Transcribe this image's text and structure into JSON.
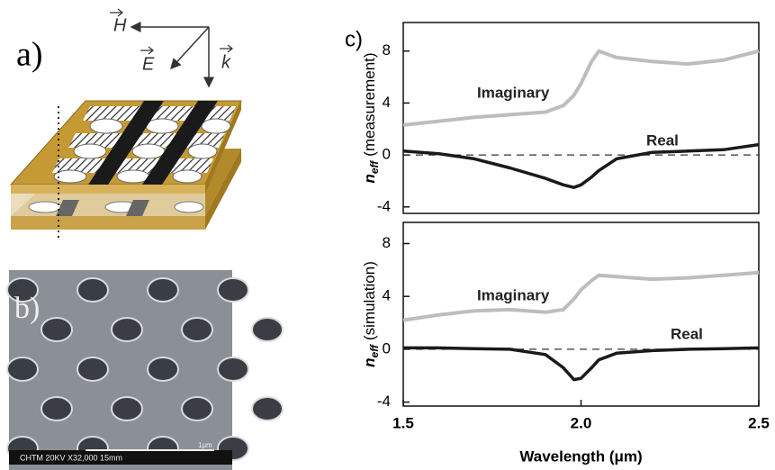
{
  "figure": {
    "panel_a": {
      "label": "a)",
      "field_h": "H",
      "field_e": "E",
      "wave_k": "k"
    },
    "panel_b": {
      "label": "b)",
      "scale_caption": "CHTM 20KV X32,000 15mm",
      "scale_length": "1μm"
    },
    "panel_c": {
      "label": "c)"
    }
  },
  "chart_data": [
    {
      "type": "line",
      "ylabel_symbol": "n",
      "ylabel_subscript": "eff",
      "ylabel": "(measurement)",
      "x": [
        1.5,
        1.6,
        1.7,
        1.8,
        1.9,
        1.95,
        1.98,
        2.0,
        2.03,
        2.05,
        2.1,
        2.2,
        2.3,
        2.4,
        2.5
      ],
      "xlim": [
        1.5,
        2.5
      ],
      "ylim": [
        -4.5,
        10.2
      ],
      "yticks": [
        -4,
        0,
        4,
        8
      ],
      "zero_line": true,
      "annotations": [
        "Imaginary",
        "Real"
      ],
      "series": [
        {
          "name": "Imaginary",
          "color": "#bdbdbd",
          "values": [
            2.3,
            2.6,
            2.9,
            3.1,
            3.3,
            3.8,
            4.6,
            5.5,
            7.2,
            8.0,
            7.5,
            7.2,
            7.0,
            7.3,
            8.0
          ]
        },
        {
          "name": "Real",
          "color": "#1a1a1a",
          "values": [
            0.3,
            0.1,
            -0.3,
            -1.0,
            -1.8,
            -2.3,
            -2.5,
            -2.3,
            -1.7,
            -1.2,
            -0.3,
            0.2,
            0.3,
            0.4,
            0.8
          ]
        }
      ]
    },
    {
      "type": "line",
      "ylabel_symbol": "n",
      "ylabel_subscript": "eff",
      "ylabel": "(simulation)",
      "xlabel": "Wavelength (μm)",
      "x": [
        1.5,
        1.6,
        1.7,
        1.8,
        1.9,
        1.95,
        1.98,
        2.0,
        2.03,
        2.05,
        2.1,
        2.2,
        2.3,
        2.4,
        2.5
      ],
      "xlim": [
        1.5,
        2.5
      ],
      "xticks": [
        1.5,
        {
          "value": 2,
          "label": "2.0"
        },
        2.5
      ],
      "ylim": [
        -4.3,
        9.6
      ],
      "yticks": [
        -4,
        0,
        4,
        8
      ],
      "zero_line": true,
      "annotations": [
        "Imaginary",
        "Real"
      ],
      "series": [
        {
          "name": "Imaginary",
          "color": "#bdbdbd",
          "values": [
            2.2,
            2.6,
            2.9,
            3.0,
            2.8,
            3.0,
            3.8,
            4.5,
            5.2,
            5.6,
            5.5,
            5.3,
            5.4,
            5.6,
            5.8
          ]
        },
        {
          "name": "Real",
          "color": "#1a1a1a",
          "values": [
            0.1,
            0.1,
            0.05,
            0,
            -0.4,
            -1.4,
            -2.3,
            -2.2,
            -1.4,
            -0.8,
            -0.3,
            -0.1,
            0,
            0.05,
            0.1
          ]
        }
      ]
    }
  ]
}
